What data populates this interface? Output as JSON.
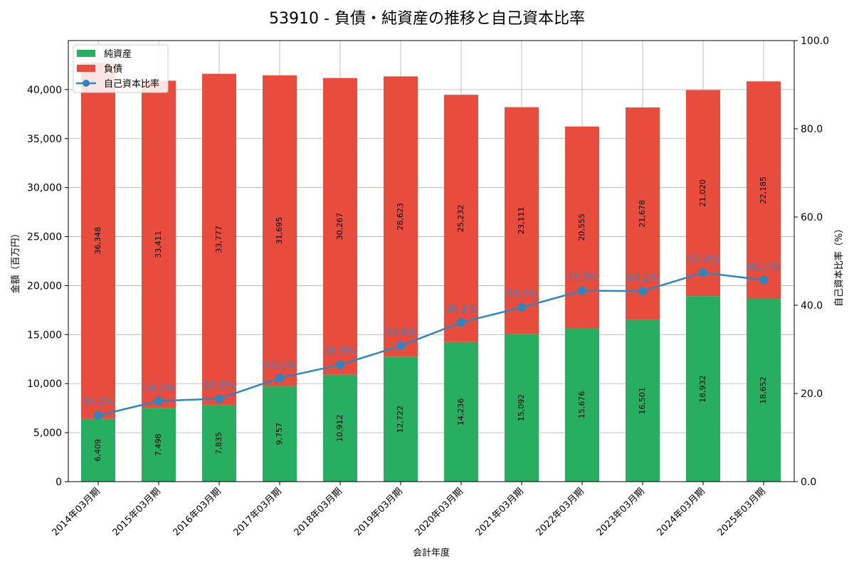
{
  "chart_data": {
    "type": "bar",
    "title": "53910 - 負債・純資産の推移と自己資本比率",
    "xlabel": "会計年度",
    "ylabel": "金額（百万円）",
    "y2label": "自己資本比率（%）",
    "categories": [
      "2014年03月期",
      "2015年03月期",
      "2016年03月期",
      "2017年03月期",
      "2018年03月期",
      "2019年03月期",
      "2020年03月期",
      "2021年03月期",
      "2022年03月期",
      "2023年03月期",
      "2024年03月期",
      "2025年03月期"
    ],
    "series": [
      {
        "name": "純資産",
        "kind": "bar",
        "axis": "left",
        "color": "#27ae60",
        "values": [
          6409,
          7498,
          7835,
          9757,
          10912,
          12722,
          14236,
          15092,
          15676,
          16501,
          18932,
          18652
        ]
      },
      {
        "name": "負債",
        "kind": "bar",
        "axis": "left",
        "color": "#e74c3c",
        "values": [
          36348,
          33411,
          33777,
          31695,
          30267,
          28623,
          25232,
          23111,
          20555,
          21678,
          21020,
          22185
        ]
      },
      {
        "name": "自己資本比率",
        "kind": "line",
        "axis": "right",
        "color": "#2e86c1",
        "values": [
          15.0,
          18.3,
          18.8,
          23.5,
          26.5,
          30.8,
          36.1,
          39.5,
          43.3,
          43.2,
          47.4,
          45.7
        ],
        "labels": [
          "15.0%",
          "18.3%",
          "18.8%",
          "23.5%",
          "26.5%",
          "30.8%",
          "36.1%",
          "39.5%",
          "43.3%",
          "43.2%",
          "47.4%",
          "45.7%"
        ]
      }
    ],
    "ylim": [
      0,
      45000
    ],
    "yticks": [
      0,
      5000,
      10000,
      15000,
      20000,
      25000,
      30000,
      35000,
      40000
    ],
    "ytick_labels": [
      "0",
      "5,000",
      "10,000",
      "15,000",
      "20,000",
      "25,000",
      "30,000",
      "35,000",
      "40,000"
    ],
    "y2lim": [
      0,
      100
    ],
    "y2ticks": [
      0,
      20,
      40,
      60,
      80,
      100
    ],
    "y2tick_labels": [
      "0.0",
      "20.0",
      "40.0",
      "60.0",
      "80.0",
      "100.0"
    ],
    "grid": true,
    "legend_position": "top-left"
  }
}
